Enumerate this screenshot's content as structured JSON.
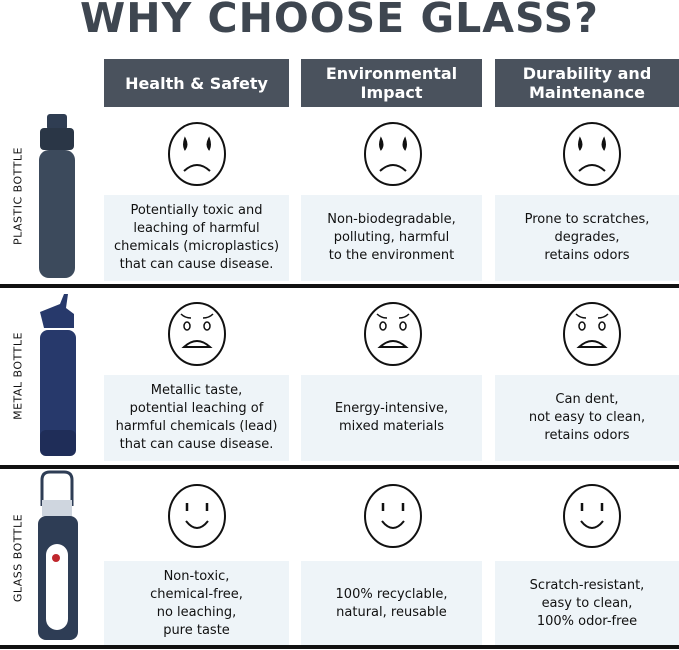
{
  "title": "WHY CHOOSE GLASS?",
  "columns": [
    "Health & Safety",
    "Environmental\nImpact",
    "Durability and\nMaintenance"
  ],
  "colors": {
    "header_bg": "#4a525d",
    "cell_bg": "#eef4f8",
    "title": "#3e4650",
    "bottle_plastic": "#3c4a5c",
    "bottle_metal": "#27396b",
    "bottle_glass": "#2e3d55"
  },
  "rows": [
    {
      "label": "PLASTIC BOTTLE",
      "face": "sad-face-icon",
      "cells": [
        "Potentially toxic and\nleaching of harmful\nchemicals (microplastics)\nthat can cause disease.",
        "Non-biodegradable,\npolluting, harmful\nto the environment",
        "Prone to scratches,\ndegrades,\nretains odors"
      ]
    },
    {
      "label": "METAL BOTTLE",
      "face": "worried-face-icon",
      "cells": [
        "Metallic taste,\npotential leaching of\nharmful chemicals (lead)\nthat can cause disease.",
        "Energy-intensive,\nmixed materials",
        "Can dent,\nnot easy to clean,\nretains odors"
      ]
    },
    {
      "label": "GLASS BOTTLE",
      "face": "smile-face-icon",
      "cells": [
        "Non-toxic,\nchemical-free,\nno leaching,\npure taste",
        "100% recyclable,\nnatural, reusable",
        "Scratch-resistant,\neasy to clean,\n100% odor-free"
      ]
    }
  ]
}
